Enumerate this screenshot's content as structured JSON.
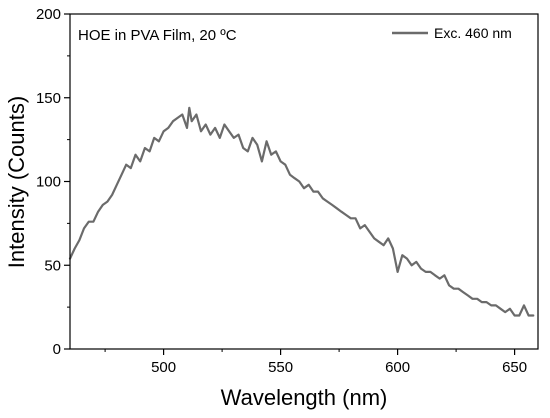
{
  "chart_data": {
    "type": "line",
    "annotation": "HOE in PVA Film, 20 ºC",
    "xlabel": "Wavelength (nm)",
    "ylabel": "Intensity (Counts)",
    "xlim": [
      460,
      660
    ],
    "ylim": [
      0,
      200
    ],
    "xticks": [
      500,
      550,
      600,
      650
    ],
    "yticks": [
      0,
      50,
      100,
      150,
      200
    ],
    "grid": false,
    "legend_position": "top-right",
    "series": [
      {
        "name": "Exc. 460 nm",
        "color": "#6b6b6b",
        "x": [
          460,
          462,
          464,
          466,
          468,
          470,
          472,
          474,
          476,
          478,
          480,
          482,
          484,
          486,
          488,
          490,
          492,
          494,
          496,
          498,
          500,
          502,
          504,
          506,
          508,
          510,
          511,
          512,
          514,
          516,
          518,
          520,
          522,
          524,
          526,
          528,
          530,
          532,
          534,
          536,
          538,
          540,
          542,
          544,
          546,
          548,
          550,
          552,
          554,
          556,
          558,
          560,
          562,
          564,
          566,
          568,
          570,
          572,
          574,
          576,
          578,
          580,
          582,
          584,
          586,
          588,
          590,
          592,
          594,
          596,
          598,
          600,
          602,
          604,
          606,
          608,
          610,
          612,
          614,
          616,
          618,
          620,
          622,
          624,
          626,
          628,
          630,
          632,
          634,
          636,
          638,
          640,
          642,
          644,
          646,
          648,
          650,
          652,
          654,
          656,
          658
        ],
        "y": [
          54,
          60,
          65,
          72,
          76,
          76,
          82,
          86,
          88,
          92,
          98,
          104,
          110,
          108,
          116,
          112,
          120,
          118,
          126,
          124,
          130,
          132,
          136,
          138,
          140,
          132,
          144,
          136,
          140,
          130,
          134,
          128,
          132,
          126,
          134,
          130,
          126,
          128,
          120,
          118,
          126,
          122,
          112,
          124,
          116,
          118,
          112,
          110,
          104,
          102,
          100,
          96,
          98,
          94,
          94,
          90,
          88,
          86,
          84,
          82,
          80,
          78,
          78,
          72,
          74,
          70,
          66,
          64,
          62,
          66,
          60,
          46,
          56,
          54,
          50,
          52,
          48,
          46,
          46,
          44,
          42,
          44,
          38,
          36,
          36,
          34,
          32,
          30,
          30,
          28,
          28,
          26,
          26,
          24,
          22,
          24,
          20,
          20,
          26,
          20,
          20
        ]
      }
    ]
  }
}
